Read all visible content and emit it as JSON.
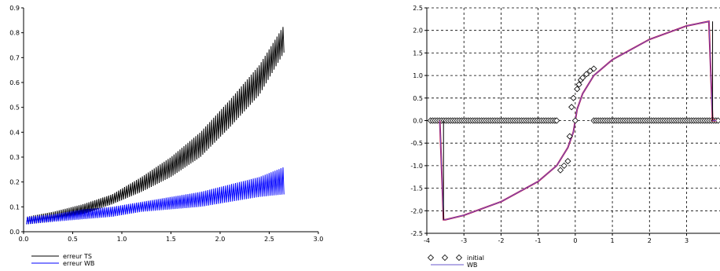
{
  "chart_data": [
    {
      "type": "line",
      "title": "",
      "xlabel": "",
      "ylabel": "",
      "xlim": [
        0.0,
        3.0
      ],
      "ylim": [
        0.0,
        0.9
      ],
      "grid": false,
      "legend_position": "bottom-left",
      "x_ticks": [
        "0.0",
        "0.5",
        "1.0",
        "1.5",
        "2.0",
        "2.5",
        "3.0"
      ],
      "y_ticks": [
        "0.0",
        "0.1",
        "0.2",
        "0.3",
        "0.4",
        "0.5",
        "0.6",
        "0.7",
        "0.8",
        "0.9"
      ],
      "series": [
        {
          "name": "erreur TS",
          "color": "#000000",
          "envelope_x": [
            0.03,
            0.3,
            0.6,
            0.9,
            1.2,
            1.5,
            1.8,
            2.1,
            2.4,
            2.65
          ],
          "envelope_low": [
            0.03,
            0.04,
            0.07,
            0.11,
            0.16,
            0.22,
            0.3,
            0.42,
            0.55,
            0.72
          ],
          "envelope_high": [
            0.06,
            0.08,
            0.11,
            0.15,
            0.22,
            0.3,
            0.4,
            0.53,
            0.67,
            0.83
          ]
        },
        {
          "name": "erreur WB",
          "color": "#0000ff",
          "envelope_x": [
            0.03,
            0.3,
            0.6,
            0.9,
            1.2,
            1.5,
            1.8,
            2.1,
            2.4,
            2.65
          ],
          "envelope_low": [
            0.03,
            0.04,
            0.05,
            0.06,
            0.08,
            0.09,
            0.1,
            0.12,
            0.14,
            0.15
          ],
          "envelope_high": [
            0.06,
            0.07,
            0.09,
            0.1,
            0.12,
            0.14,
            0.16,
            0.19,
            0.22,
            0.26
          ]
        }
      ]
    },
    {
      "type": "scatter",
      "title": "",
      "xlabel": "",
      "ylabel": "",
      "xlim": [
        -4,
        3.9
      ],
      "ylim": [
        -2.5,
        2.5
      ],
      "grid": true,
      "legend_position": "bottom-left",
      "x_ticks": [
        "-4",
        "-3",
        "-2",
        "-1",
        "0",
        "1",
        "2",
        "3"
      ],
      "y_ticks": [
        "-2.5",
        "-2.0",
        "-1.5",
        "-1.0",
        "-0.5",
        "0.0",
        "0.5",
        "1.0",
        "1.5",
        "2.0",
        "2.5"
      ],
      "series": [
        {
          "name": "initial",
          "marker": "diamond",
          "color": "#000000",
          "x": [
            -0.5,
            -0.1,
            -0.05,
            0.0,
            0.05,
            0.1,
            0.15,
            0.2,
            0.3,
            0.4,
            0.5,
            -0.15,
            -0.2,
            -0.3,
            -0.4
          ],
          "y": [
            0.0,
            0.3,
            0.5,
            0.0,
            0.7,
            0.8,
            0.9,
            0.95,
            1.03,
            1.1,
            1.15,
            -0.35,
            -0.9,
            -1.0,
            -1.1
          ],
          "x_band_left": [
            -3.9,
            -0.55
          ],
          "x_band_right": [
            0.5,
            3.85
          ]
        },
        {
          "name": "WB",
          "color": "#6a5acd",
          "x": [
            -3.65,
            -3.55,
            -3.5,
            -3.0,
            -2.0,
            -1.0,
            -0.5,
            -0.2,
            -0.05,
            0.0,
            0.05,
            0.2,
            0.5,
            1.0,
            2.0,
            3.0,
            3.6,
            3.7,
            3.8
          ],
          "y": [
            0.0,
            -2.2,
            -2.2,
            -2.1,
            -1.8,
            -1.35,
            -1.0,
            -0.6,
            -0.25,
            0.0,
            0.25,
            0.6,
            1.0,
            1.35,
            1.8,
            2.1,
            2.2,
            0.0,
            0.0
          ]
        }
      ]
    }
  ]
}
